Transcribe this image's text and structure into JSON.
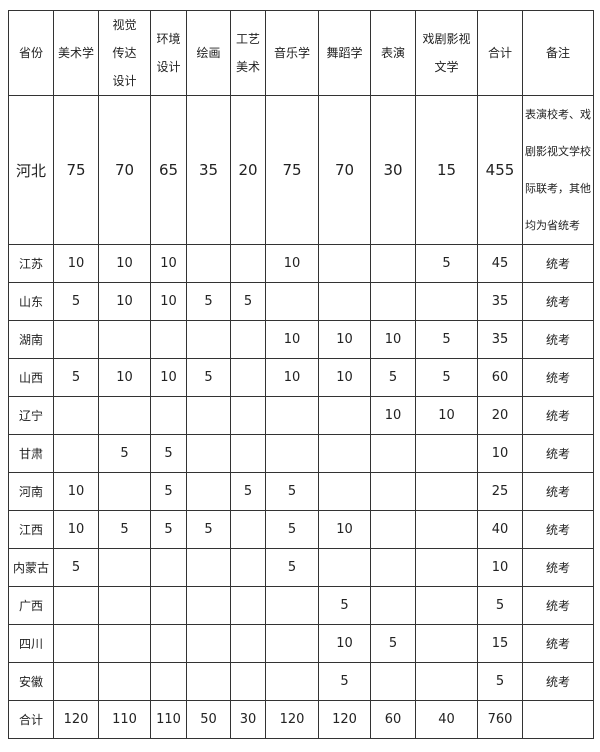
{
  "table": {
    "headers": [
      "省份",
      "美术学",
      "视觉传达设计",
      "环境设计",
      "绘画",
      "工艺美术",
      "音乐学",
      "舞蹈学",
      "表演",
      "戏剧影视文学",
      "合计",
      "备注"
    ],
    "rows": [
      {
        "province": "河北",
        "values": [
          "75",
          "70",
          "65",
          "35",
          "20",
          "75",
          "70",
          "30",
          "15",
          "455"
        ],
        "note": "表演校考、戏剧影视文学校际联考，其他均为省统考"
      },
      {
        "province": "江苏",
        "values": [
          "10",
          "10",
          "10",
          "",
          "",
          "10",
          "",
          "",
          "5",
          "45"
        ],
        "note": "统考"
      },
      {
        "province": "山东",
        "values": [
          "5",
          "10",
          "10",
          "5",
          "5",
          "",
          "",
          "",
          "",
          "35"
        ],
        "note": "统考"
      },
      {
        "province": "湖南",
        "values": [
          "",
          "",
          "",
          "",
          "",
          "10",
          "10",
          "10",
          "5",
          "35"
        ],
        "note": "统考"
      },
      {
        "province": "山西",
        "values": [
          "5",
          "10",
          "10",
          "5",
          "",
          "10",
          "10",
          "5",
          "5",
          "60"
        ],
        "note": "统考"
      },
      {
        "province": "辽宁",
        "values": [
          "",
          "",
          "",
          "",
          "",
          "",
          "",
          "10",
          "10",
          "20"
        ],
        "note": "统考"
      },
      {
        "province": "甘肃",
        "values": [
          "",
          "5",
          "5",
          "",
          "",
          "",
          "",
          "",
          "",
          "10"
        ],
        "note": "统考"
      },
      {
        "province": "河南",
        "values": [
          "10",
          "",
          "5",
          "",
          "5",
          "5",
          "",
          "",
          "",
          "25"
        ],
        "note": "统考"
      },
      {
        "province": "江西",
        "values": [
          "10",
          "5",
          "5",
          "5",
          "",
          "5",
          "10",
          "",
          "",
          "40"
        ],
        "note": "统考"
      },
      {
        "province": "内蒙古",
        "values": [
          "5",
          "",
          "",
          "",
          "",
          "5",
          "",
          "",
          "",
          "10"
        ],
        "note": "统考"
      },
      {
        "province": "广西",
        "values": [
          "",
          "",
          "",
          "",
          "",
          "",
          "5",
          "",
          "",
          "5"
        ],
        "note": "统考"
      },
      {
        "province": "四川",
        "values": [
          "",
          "",
          "",
          "",
          "",
          "",
          "10",
          "5",
          "",
          "15"
        ],
        "note": "统考"
      },
      {
        "province": "安徽",
        "values": [
          "",
          "",
          "",
          "",
          "",
          "",
          "5",
          "",
          "",
          "5"
        ],
        "note": "统考"
      },
      {
        "province": "合计",
        "values": [
          "120",
          "110",
          "110",
          "50",
          "30",
          "120",
          "120",
          "60",
          "40",
          "760"
        ],
        "note": ""
      }
    ]
  }
}
